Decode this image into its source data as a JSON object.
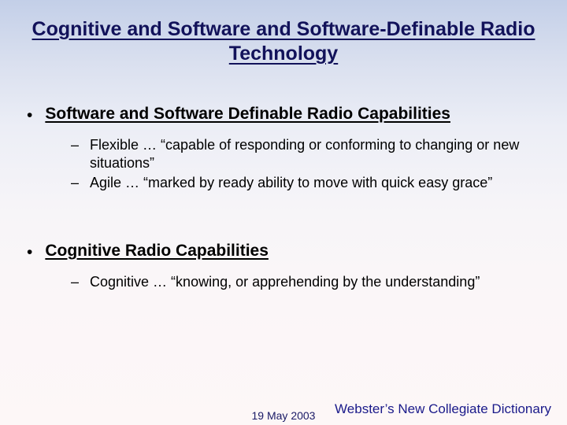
{
  "title": "Cognitive and Software and Software-Definable Radio Technology",
  "sections": [
    {
      "heading": "Software and Software Definable Radio Capabilities",
      "items": [
        "Flexible … “capable of responding or conforming to changing or new situations”",
        "Agile … “marked by ready ability to move with quick easy grace”"
      ]
    },
    {
      "heading": "Cognitive Radio Capabilities",
      "items": [
        "Cognitive … “knowing, or apprehending by the understanding”"
      ]
    }
  ],
  "footer": {
    "date": "19 May 2003",
    "source": "Webster’s New Collegiate Dictionary"
  },
  "style": {
    "title_color": "#12125a",
    "title_fontsize": 25,
    "heading_fontsize": 21,
    "body_fontsize": 18,
    "bg_gradient_top": "#c3cfe8",
    "bg_gradient_bottom": "#fdf7f7",
    "footer_color": "#1a1a8a"
  }
}
